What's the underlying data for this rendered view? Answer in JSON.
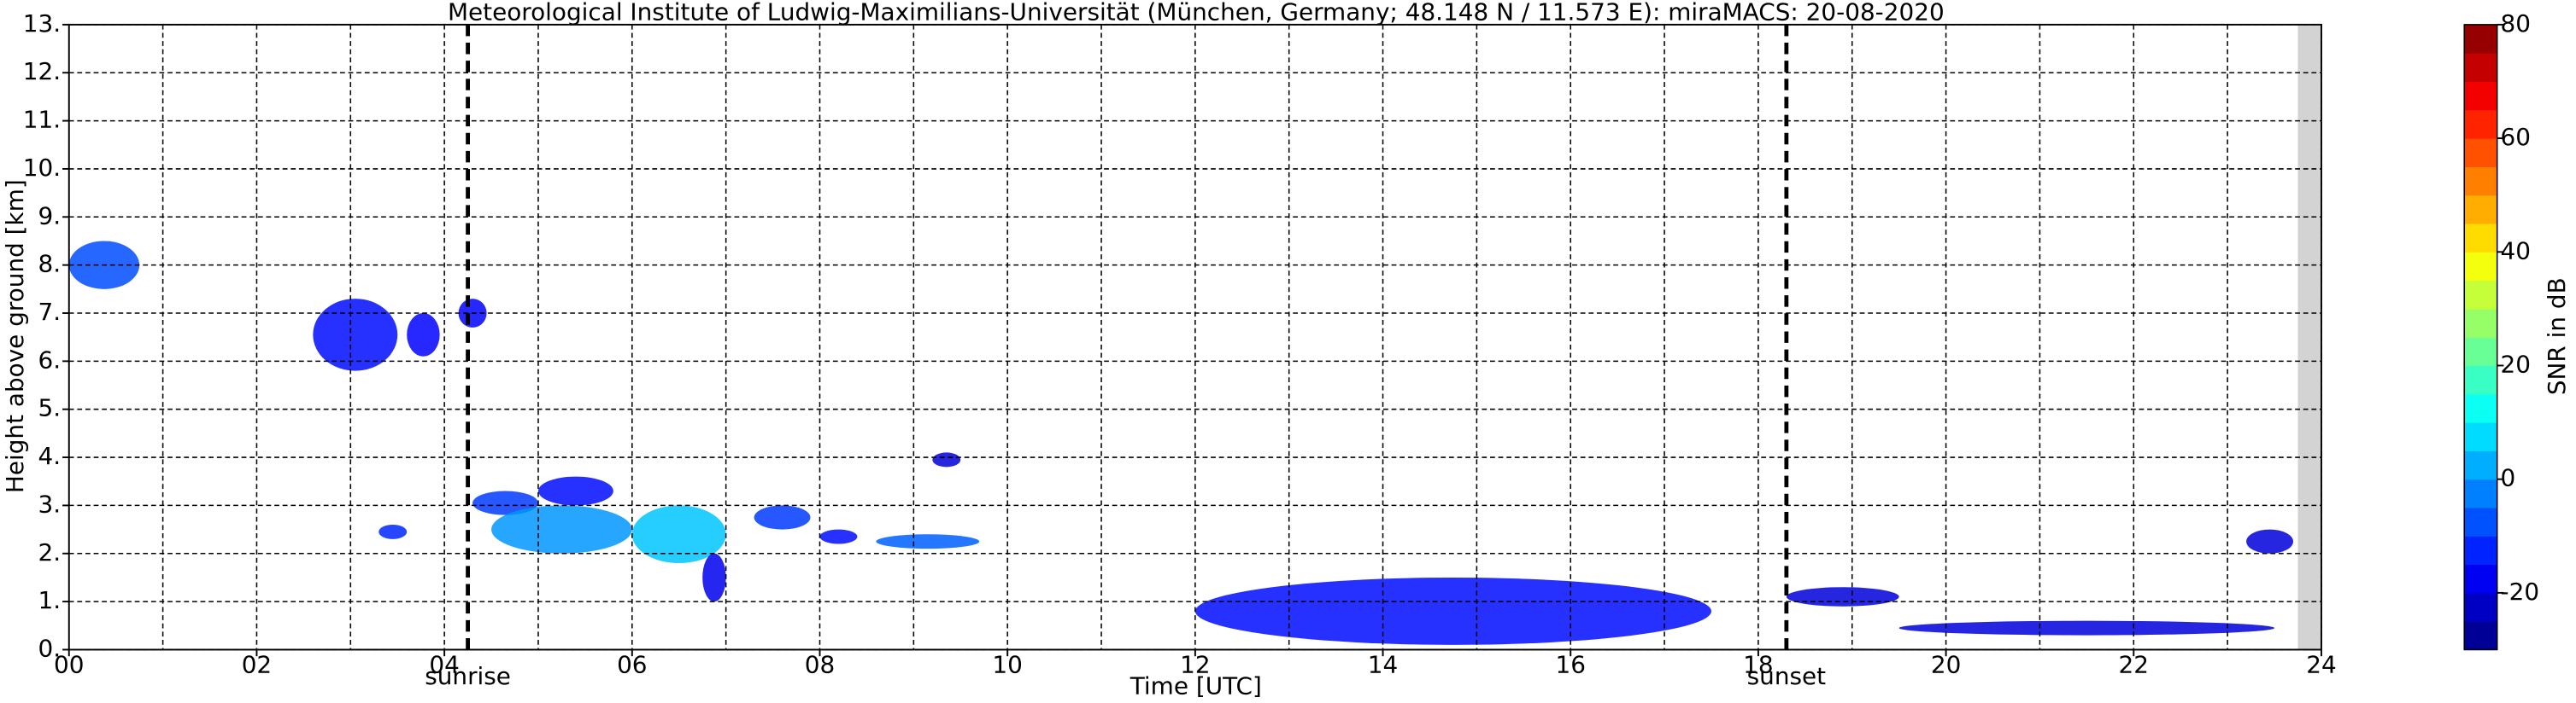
{
  "chart_data": {
    "type": "radar-echoes",
    "title": "Meteorological Institute of Ludwig-Maximilians-Universität (München, Germany; 48.148 N / 11.573 E):    miraMACS: 20-08-2020",
    "xlabel": "Time [UTC]",
    "ylabel": "Height above ground [km]",
    "colorbar_label": "SNR in dB",
    "xlim": [
      0,
      24
    ],
    "ylim": [
      0,
      13
    ],
    "xticks": [
      {
        "value": 0,
        "label": "00"
      },
      {
        "value": 2,
        "label": "02"
      },
      {
        "value": 4,
        "label": "04"
      },
      {
        "value": 6,
        "label": "06"
      },
      {
        "value": 8,
        "label": "08"
      },
      {
        "value": 10,
        "label": "10"
      },
      {
        "value": 12,
        "label": "12"
      },
      {
        "value": 14,
        "label": "14"
      },
      {
        "value": 16,
        "label": "16"
      },
      {
        "value": 18,
        "label": "18"
      },
      {
        "value": 20,
        "label": "20"
      },
      {
        "value": 22,
        "label": "22"
      },
      {
        "value": 24,
        "label": "24"
      }
    ],
    "xminorgrid": [
      1,
      3,
      5,
      7,
      9,
      11,
      13,
      15,
      17,
      19,
      21,
      23
    ],
    "yticks": [
      {
        "value": 0,
        "label": "0."
      },
      {
        "value": 1,
        "label": "1."
      },
      {
        "value": 2,
        "label": "2."
      },
      {
        "value": 3,
        "label": "3."
      },
      {
        "value": 4,
        "label": "4."
      },
      {
        "value": 5,
        "label": "5."
      },
      {
        "value": 6,
        "label": "6."
      },
      {
        "value": 7,
        "label": "7."
      },
      {
        "value": 8,
        "label": "8."
      },
      {
        "value": 9,
        "label": "9."
      },
      {
        "value": 10,
        "label": "10."
      },
      {
        "value": 11,
        "label": "11."
      },
      {
        "value": 12,
        "label": "12."
      },
      {
        "value": 13,
        "label": "13."
      }
    ],
    "grid": true,
    "no_data_from": 23.75,
    "sun_events": [
      {
        "x": 4.25,
        "label": "sunrise"
      },
      {
        "x": 18.3,
        "label": "sunset"
      }
    ],
    "clim": [
      -30,
      80
    ],
    "cticks": [
      -20,
      0,
      20,
      40,
      60,
      80
    ],
    "colormap": [
      "#00007f",
      "#0000ff",
      "#007fff",
      "#00ffff",
      "#7fff7f",
      "#ffff00",
      "#ff7f00",
      "#ff0000",
      "#7f0000"
    ],
    "echoes": [
      {
        "x": [
          0.0,
          0.75
        ],
        "y": [
          7.5,
          8.5
        ],
        "snr": -8
      },
      {
        "x": [
          2.6,
          3.5
        ],
        "y": [
          5.8,
          7.3
        ],
        "snr": -15
      },
      {
        "x": [
          3.6,
          3.95
        ],
        "y": [
          6.1,
          7.0
        ],
        "snr": -16
      },
      {
        "x": [
          4.15,
          4.45
        ],
        "y": [
          6.7,
          7.3
        ],
        "snr": -16
      },
      {
        "x": [
          3.3,
          3.6
        ],
        "y": [
          2.3,
          2.6
        ],
        "snr": -12
      },
      {
        "x": [
          4.3,
          5.0
        ],
        "y": [
          2.8,
          3.3
        ],
        "snr": -10
      },
      {
        "x": [
          4.5,
          6.0
        ],
        "y": [
          2.0,
          3.0
        ],
        "snr": 0
      },
      {
        "x": [
          5.0,
          5.8
        ],
        "y": [
          3.0,
          3.6
        ],
        "snr": -15
      },
      {
        "x": [
          6.0,
          7.0
        ],
        "y": [
          1.8,
          3.0
        ],
        "snr": 5
      },
      {
        "x": [
          6.75,
          7.0
        ],
        "y": [
          1.0,
          2.0
        ],
        "snr": -18
      },
      {
        "x": [
          7.3,
          7.9
        ],
        "y": [
          2.5,
          3.0
        ],
        "snr": -10
      },
      {
        "x": [
          8.0,
          8.4
        ],
        "y": [
          2.2,
          2.5
        ],
        "snr": -15
      },
      {
        "x": [
          8.6,
          9.7
        ],
        "y": [
          2.1,
          2.4
        ],
        "snr": -6
      },
      {
        "x": [
          9.2,
          9.5
        ],
        "y": [
          3.8,
          4.1
        ],
        "snr": -20
      },
      {
        "x": [
          18.3,
          19.5
        ],
        "y": [
          0.9,
          1.3
        ],
        "snr": -20
      },
      {
        "x": [
          19.5,
          23.5
        ],
        "y": [
          0.3,
          0.6
        ],
        "snr": -20
      },
      {
        "x": [
          23.2,
          23.7
        ],
        "y": [
          2.0,
          2.5
        ],
        "snr": -20
      },
      {
        "x": [
          12.0,
          17.5
        ],
        "y": [
          0.1,
          1.5
        ],
        "snr": -15
      }
    ]
  }
}
